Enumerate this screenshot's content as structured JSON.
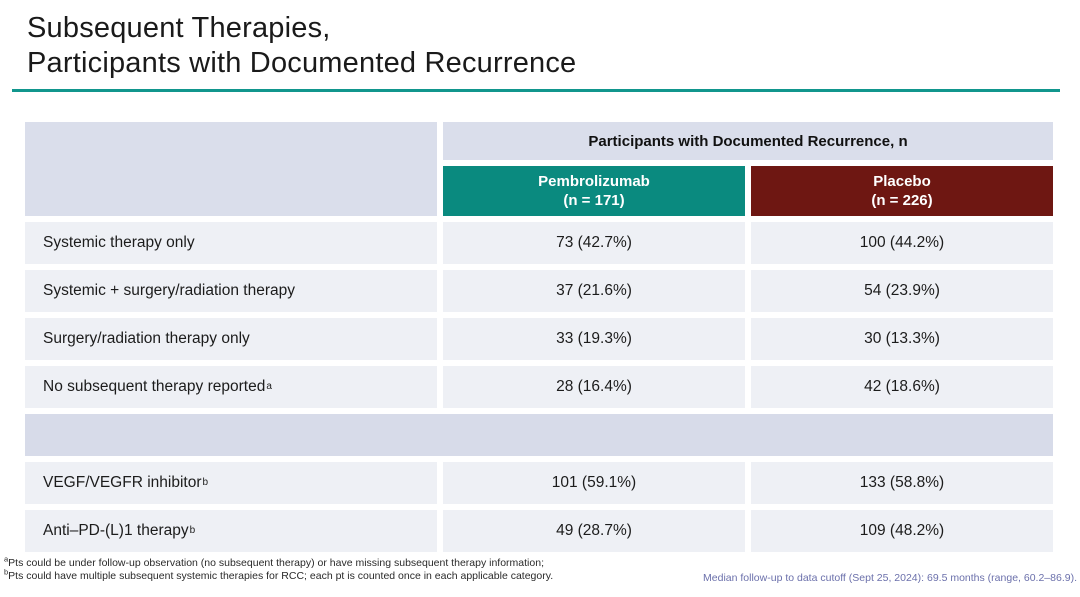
{
  "slide": {
    "title_line1": "Subsequent Therapies,",
    "title_line2": "Participants with Documented Recurrence"
  },
  "table": {
    "group_header": "Participants with Documented Recurrence, n",
    "columns": [
      {
        "name": "Pembrolizumab",
        "n_label": "(n = 171)"
      },
      {
        "name": "Placebo",
        "n_label": "(n = 226)"
      }
    ],
    "rows": [
      {
        "label": "Systemic therapy only",
        "sup": "",
        "pembrolizumab": "73 (42.7%)",
        "placebo": "100 (44.2%)"
      },
      {
        "label": "Systemic + surgery/radiation therapy",
        "sup": "",
        "pembrolizumab": "37 (21.6%)",
        "placebo": "54 (23.9%)"
      },
      {
        "label": "Surgery/radiation therapy only",
        "sup": "",
        "pembrolizumab": "33 (19.3%)",
        "placebo": "30 (13.3%)"
      },
      {
        "label": "No subsequent therapy reported",
        "sup": "a",
        "pembrolizumab": "28 (16.4%)",
        "placebo": "42 (18.6%)"
      },
      {
        "label": "VEGF/VEGFR inhibitor",
        "sup": "b",
        "pembrolizumab": "101 (59.1%)",
        "placebo": "133 (58.8%)"
      },
      {
        "label": "Anti–PD-(L)1 therapy",
        "sup": "b",
        "pembrolizumab": "49 (28.7%)",
        "placebo": "109 (48.2%)"
      }
    ]
  },
  "footnotes": {
    "a_marker": "a",
    "a_text": "Pts could be under follow-up observation (no subsequent therapy) or have missing subsequent therapy information;",
    "b_marker": "b",
    "b_text": "Pts could have multiple subsequent systemic therapies for RCC; each pt is counted once in each applicable category.",
    "median_followup": "Median follow-up to data cutoff (Sept 25, 2024): 69.5 months (range, 60.2–86.9)."
  },
  "colors": {
    "accent-teal": "#0a8a7f",
    "accent-maroon": "#6e1712",
    "title-rule-teal": "#11968d",
    "header-lavender": "#dadeeb",
    "separator-lavender": "#d7dbe9",
    "row-gray": "#eef0f5",
    "footnote-blue": "#6b70ab"
  }
}
